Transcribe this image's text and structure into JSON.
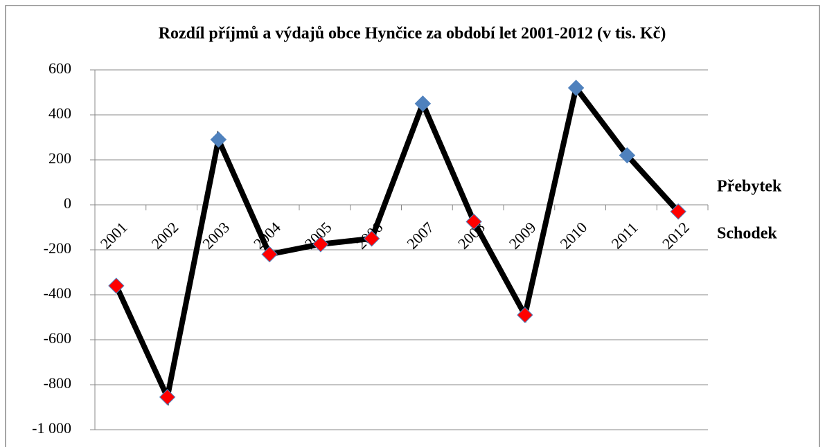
{
  "chart_data": {
    "type": "line",
    "title": "Rozdíl příjmů a výdajů obce Hynčice za období let 2001-2012 (v tis. Kč)",
    "categories": [
      "2001",
      "2002",
      "2003",
      "2004",
      "2005",
      "2006",
      "2007",
      "2008",
      "2009",
      "2010",
      "2011",
      "2012"
    ],
    "series": [
      {
        "color": "#000000",
        "values": [
          -360,
          -855,
          290,
          -220,
          -175,
          -150,
          450,
          -75,
          -490,
          520,
          220,
          -30
        ]
      }
    ],
    "positive_color": "#4f81bd",
    "negative_color": "#ff0000",
    "annotations": [
      {
        "text": "Přebytek",
        "color": "#4f81bd"
      },
      {
        "text": "Schodek",
        "color": "#ff0000"
      }
    ],
    "ylim": [
      -1000,
      600
    ],
    "yticks": [
      {
        "value": -1000,
        "label": "-1 000"
      },
      -800,
      -600,
      -400,
      -200,
      0,
      200,
      400,
      600
    ],
    "grid": true
  }
}
